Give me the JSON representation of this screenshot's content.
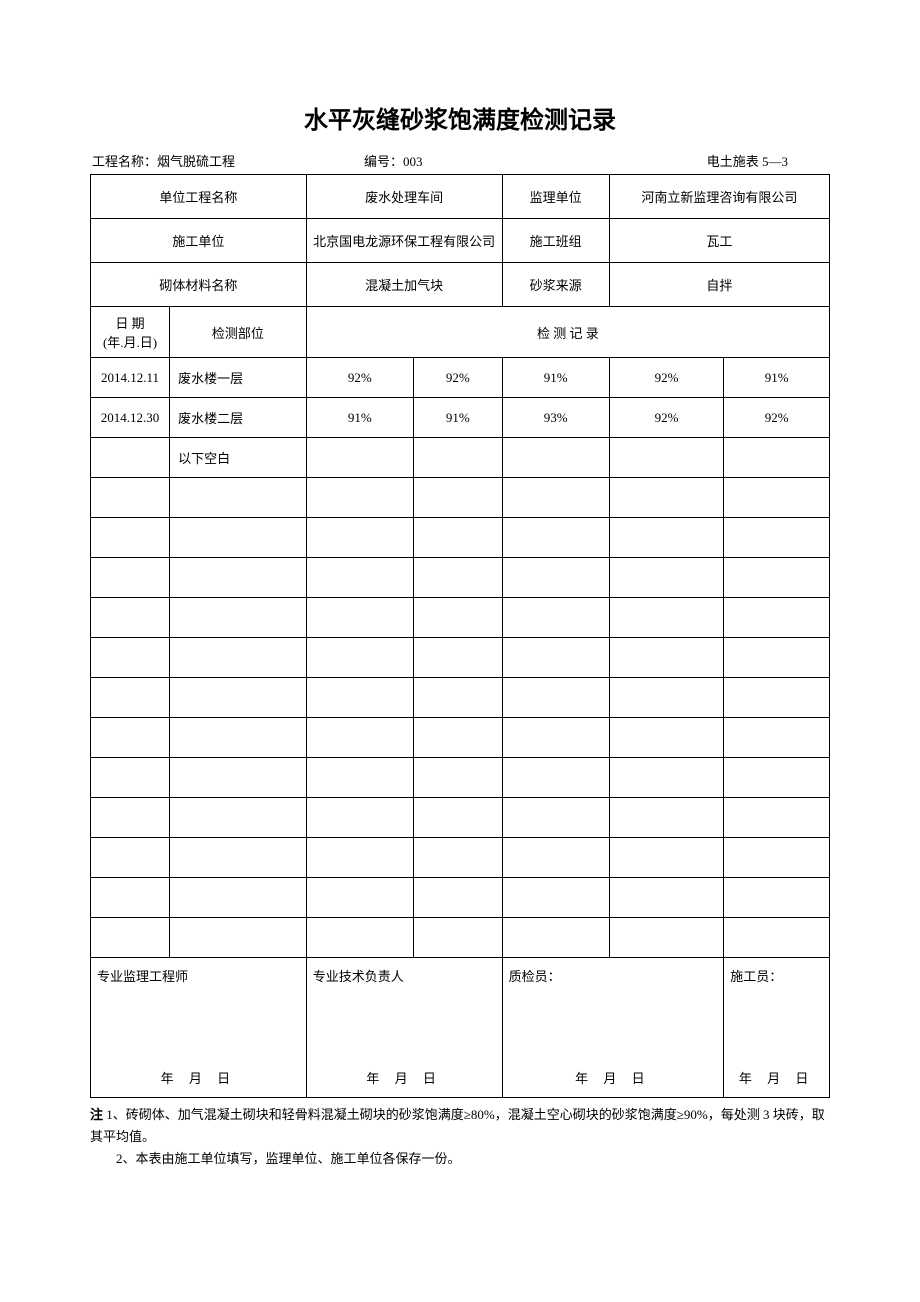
{
  "title": "水平灰缝砂浆饱满度检测记录",
  "meta": {
    "project_label": "工程名称：",
    "project_name": "烟气脱硫工程",
    "number_label": "编号：",
    "number": "003",
    "form_code": "电土施表 5—3"
  },
  "header": {
    "unit_project_label": "单位工程名称",
    "unit_project_value": "废水处理车间",
    "supervision_label": "监理单位",
    "supervision_value": "河南立新监理咨询有限公司",
    "construction_unit_label": "施工单位",
    "construction_unit_value": "北京国电龙源环保工程有限公司",
    "team_label": "施工班组",
    "team_value": "瓦工",
    "material_label": "砌体材料名称",
    "material_value": "混凝土加气块",
    "mortar_source_label": "砂浆来源",
    "mortar_source_value": "自拌"
  },
  "columns": {
    "date": "日   期\n(年.月.日)",
    "location": "检测部位",
    "record": "检   测   记   录"
  },
  "rows": [
    {
      "date": "2014.12.11",
      "location": "废水楼一层",
      "v": [
        "92%",
        "92%",
        "91%",
        "92%",
        "91%"
      ]
    },
    {
      "date": "2014.12.30",
      "location": "废水楼二层",
      "v": [
        "91%",
        "91%",
        "93%",
        "92%",
        "92%"
      ]
    },
    {
      "date": "",
      "location": "以下空白",
      "v": [
        "",
        "",
        "",
        "",
        ""
      ]
    }
  ],
  "empty_rows": 12,
  "signatures": {
    "s1": "专业监理工程师",
    "s2": "专业技术负责人",
    "s3": "质检员：",
    "s4": "施工员：",
    "date_text": "年   月   日"
  },
  "notes": {
    "label": "注",
    "n1": "1、砖砌体、加气混凝土砌块和轻骨料混凝土砌块的砂浆饱满度≥80%，混凝土空心砌块的砂浆饱满度≥90%，每处测 3 块砖，取其平均值。",
    "n2": "2、本表由施工单位填写，监理单位、施工单位各保存一份。"
  },
  "style": {
    "text_color": "#000000",
    "background": "#ffffff",
    "border_color": "#000000",
    "title_fontsize": 24,
    "body_fontsize": 13
  }
}
